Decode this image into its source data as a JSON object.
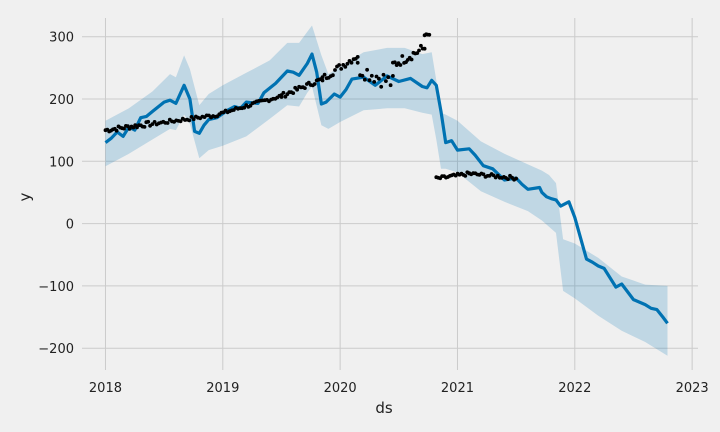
{
  "chart_data": {
    "type": "line",
    "title": "",
    "xlabel": "ds",
    "ylabel": "y",
    "xlim": [
      2017.8,
      2023.05
    ],
    "ylim": [
      -235,
      330
    ],
    "xticks": [
      2018,
      2019,
      2020,
      2021,
      2022,
      2023
    ],
    "xtick_labels": [
      "2018",
      "2019",
      "2020",
      "2021",
      "2022",
      "2023"
    ],
    "yticks": [
      -200,
      -100,
      0,
      100,
      200,
      300
    ],
    "ytick_labels": [
      "−200",
      "−100",
      "0",
      "100",
      "200",
      "300"
    ],
    "grid": true,
    "colors": {
      "forecast": "#0072b2",
      "band": "#0072b2",
      "observed": "#000000",
      "background": "#f0f0f0",
      "grid": "#cbcbcb"
    },
    "series": [
      {
        "kind": "line",
        "x": [
          2018.0,
          2018.05,
          2018.1,
          2018.15,
          2018.2,
          2018.25,
          2018.3,
          2018.35,
          2018.4,
          2018.5,
          2018.55,
          2018.6,
          2018.67,
          2018.72,
          2018.76,
          2018.8,
          2018.84,
          2018.88,
          2018.95,
          2019.05,
          2019.1,
          2019.15,
          2019.2,
          2019.3,
          2019.35,
          2019.45,
          2019.55,
          2019.6,
          2019.65,
          2019.72,
          2019.76,
          2019.8,
          2019.84,
          2019.88,
          2019.95,
          2020.0,
          2020.05,
          2020.1,
          2020.2,
          2020.3,
          2020.4,
          2020.5,
          2020.6,
          2020.7,
          2020.74,
          2020.78,
          2020.82,
          2020.86,
          2020.9,
          2020.95,
          2021.0,
          2021.1,
          2021.15,
          2021.22,
          2021.3,
          2021.4,
          2021.5,
          2021.55,
          2021.6,
          2021.7,
          2021.72,
          2021.76,
          2021.8,
          2021.84,
          2021.88,
          2021.95,
          2022.0,
          2022.1,
          2022.15,
          2022.2,
          2022.25,
          2022.35,
          2022.4,
          2022.5,
          2022.6,
          2022.65,
          2022.7,
          2022.75,
          2022.79
        ],
        "y": [
          130,
          137,
          147,
          140,
          155,
          150,
          170,
          172,
          180,
          195,
          198,
          193,
          222,
          200,
          148,
          145,
          158,
          167,
          170,
          183,
          188,
          185,
          195,
          193,
          210,
          225,
          245,
          243,
          238,
          257,
          272,
          243,
          192,
          195,
          208,
          203,
          215,
          232,
          235,
          222,
          237,
          228,
          233,
          220,
          218,
          230,
          222,
          180,
          130,
          133,
          118,
          120,
          110,
          93,
          88,
          70,
          73,
          63,
          55,
          58,
          50,
          43,
          40,
          38,
          28,
          35,
          10,
          -57,
          -62,
          -68,
          -72,
          -102,
          -97,
          -122,
          -130,
          -136,
          -138,
          -150,
          -160
        ]
      },
      {
        "kind": "band",
        "x": [
          2018.0,
          2018.2,
          2018.4,
          2018.55,
          2018.6,
          2018.67,
          2018.72,
          2018.8,
          2018.88,
          2019.0,
          2019.2,
          2019.4,
          2019.55,
          2019.65,
          2019.72,
          2019.76,
          2019.84,
          2019.9,
          2020.0,
          2020.2,
          2020.4,
          2020.55,
          2020.7,
          2020.78,
          2020.82,
          2020.86,
          2020.9,
          2021.0,
          2021.2,
          2021.4,
          2021.6,
          2021.72,
          2021.78,
          2021.84,
          2021.9,
          2022.0,
          2022.2,
          2022.4,
          2022.6,
          2022.79
        ],
        "lower": [
          92,
          112,
          135,
          152,
          150,
          175,
          160,
          105,
          118,
          125,
          140,
          168,
          190,
          188,
          210,
          220,
          158,
          152,
          163,
          182,
          185,
          185,
          178,
          175,
          135,
          88,
          88,
          82,
          52,
          35,
          20,
          5,
          -5,
          -15,
          -108,
          -120,
          -148,
          -172,
          -190,
          -212
        ],
        "upper": [
          165,
          185,
          212,
          240,
          235,
          270,
          248,
          190,
          208,
          222,
          242,
          262,
          290,
          290,
          308,
          318,
          270,
          240,
          252,
          275,
          282,
          282,
          272,
          275,
          230,
          178,
          175,
          165,
          132,
          112,
          95,
          85,
          78,
          65,
          -25,
          -32,
          -55,
          -85,
          -98,
          -100
        ]
      },
      {
        "kind": "scatter",
        "segments": [
          {
            "x0": 2018.0,
            "x1": 2018.38,
            "n": 25,
            "y0": 150,
            "y1": 160,
            "noise": 4
          },
          {
            "x0": 2018.4,
            "x1": 2018.9,
            "n": 28,
            "y0": 160,
            "y1": 173,
            "noise": 3
          },
          {
            "x0": 2018.9,
            "x1": 2019.5,
            "n": 35,
            "y0": 172,
            "y1": 205,
            "noise": 3
          },
          {
            "x0": 2019.5,
            "x1": 2019.85,
            "n": 22,
            "y0": 205,
            "y1": 232,
            "noise": 4
          },
          {
            "x0": 2019.85,
            "x1": 2020.15,
            "n": 18,
            "y0": 233,
            "y1": 270,
            "noise": 6
          },
          {
            "x0": 2020.15,
            "x1": 2020.45,
            "n": 16,
            "y0": 250,
            "y1": 225,
            "noise": 14
          },
          {
            "x0": 2020.45,
            "x1": 2020.72,
            "n": 18,
            "y0": 255,
            "y1": 282,
            "noise": 8
          },
          {
            "x0": 2020.72,
            "x1": 2020.76,
            "n": 4,
            "y0": 303,
            "y1": 303,
            "noise": 1
          },
          {
            "x0": 2020.82,
            "x1": 2021.1,
            "n": 18,
            "y0": 72,
            "y1": 80,
            "noise": 3
          },
          {
            "x0": 2021.1,
            "x1": 2021.5,
            "n": 24,
            "y0": 80,
            "y1": 73,
            "noise": 3
          }
        ]
      }
    ]
  }
}
